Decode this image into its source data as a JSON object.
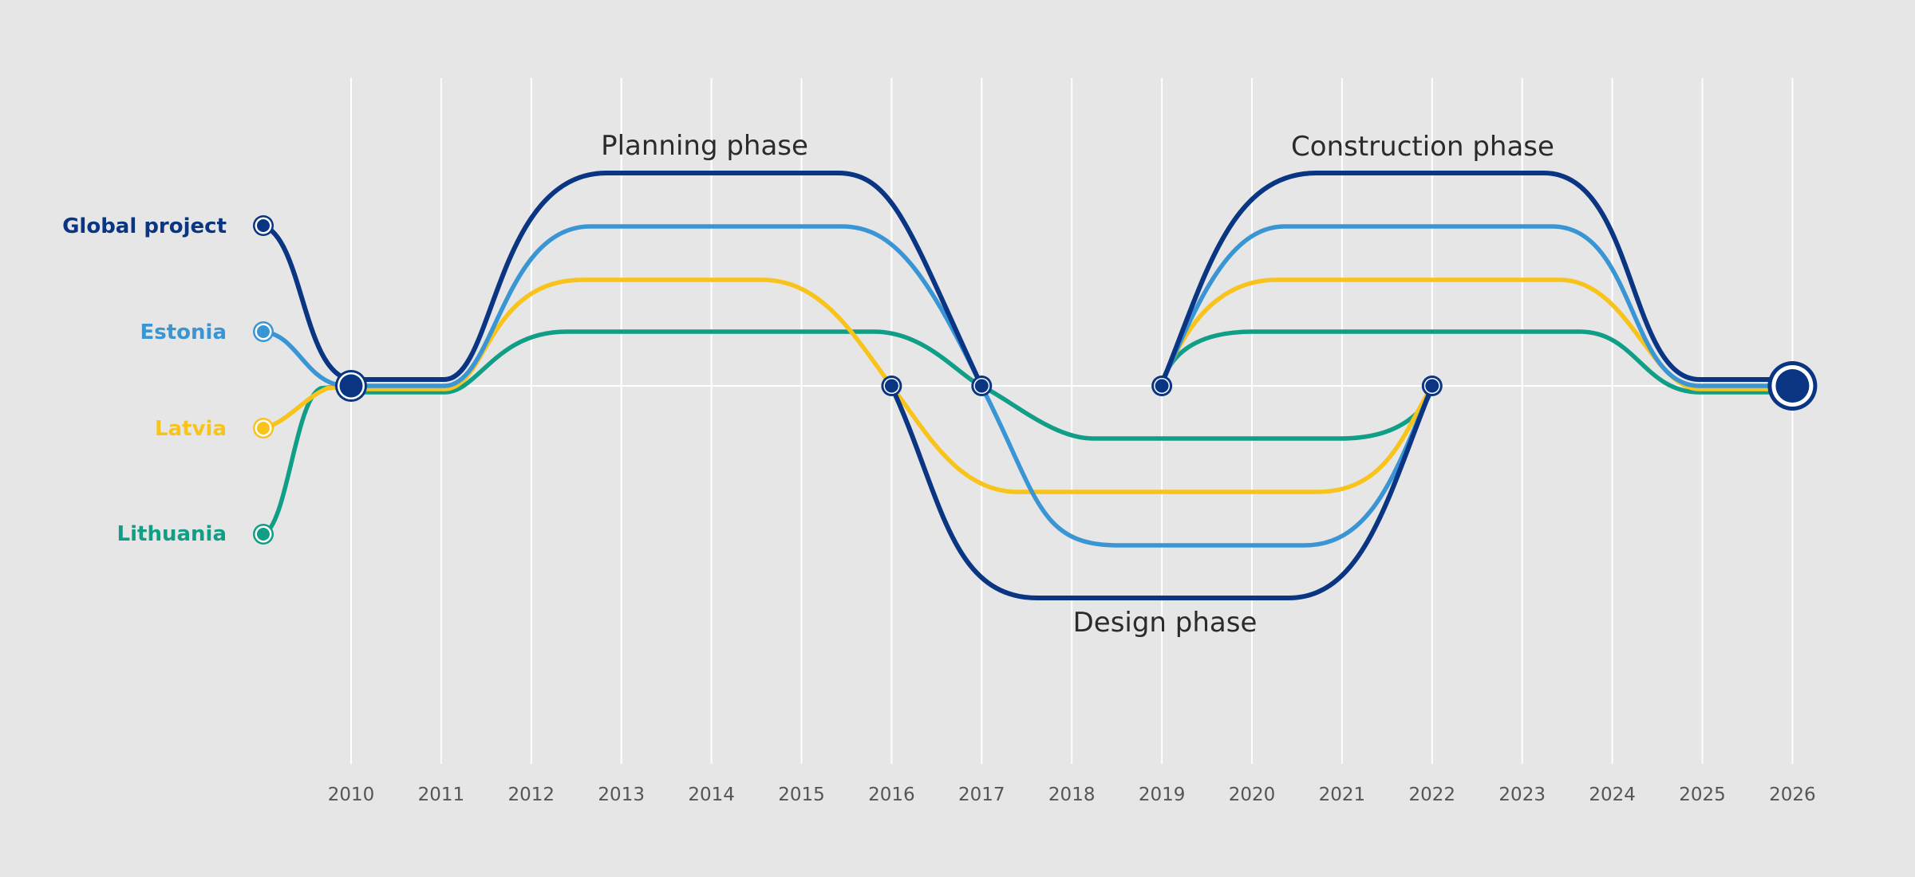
{
  "chart_data": {
    "type": "diagram",
    "title": "",
    "x_years": [
      "2010",
      "2011",
      "2012",
      "2013",
      "2014",
      "2015",
      "2016",
      "2017",
      "2018",
      "2019",
      "2020",
      "2021",
      "2022",
      "2023",
      "2024",
      "2025",
      "2026"
    ],
    "series": [
      {
        "key": "global",
        "name": "Global project",
        "color": "#0a3583"
      },
      {
        "key": "estonia",
        "name": "Estonia",
        "color": "#3a95d5"
      },
      {
        "key": "latvia",
        "name": "Latvia",
        "color": "#f8c31b"
      },
      {
        "key": "lithuania",
        "name": "Lithuania",
        "color": "#119e87"
      }
    ],
    "phases": [
      {
        "label": "Planning phase",
        "start": 2010,
        "end": 2017
      },
      {
        "label": "Design phase",
        "start": 2016,
        "end": 2022
      },
      {
        "label": "Construction phase",
        "start": 2019,
        "end": 2026
      }
    ],
    "milestones": [
      2010,
      2016,
      2017,
      2019,
      2022,
      2026
    ]
  },
  "colors": {
    "background": "#e6e6e6",
    "grid": "#ffffff",
    "node": "#0a3583"
  }
}
